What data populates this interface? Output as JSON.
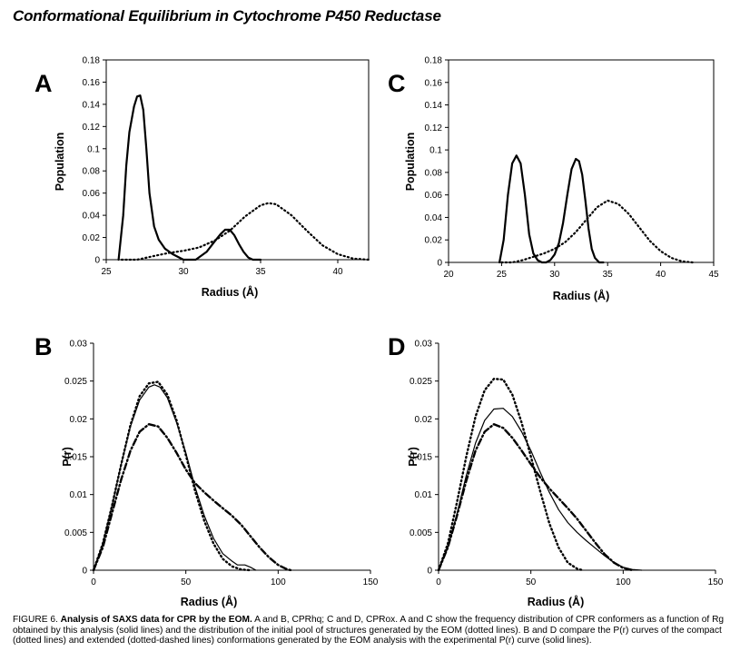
{
  "title": "Conformational Equilibrium in Cytochrome P450 Reductase",
  "caption": {
    "figure_label": "FIGURE 6.",
    "heading": "Analysis of SAXS data for CPR by the EOM.",
    "text": "A and B, CPRhq; C and D, CPRox. A and C show the frequency distribution of CPR conformers as a function of Rg obtained by this analysis (solid lines) and the distribution of the initial pool of structures generated by the EOM (dotted lines). B and D compare the P(r) curves of the compact (dotted lines) and extended (dotted-dashed lines) conformations generated by the EOM analysis with the experimental P(r) curve (solid lines)."
  },
  "chart_data": [
    {
      "panel": "A",
      "type": "line",
      "xlabel": "Radius (Å)",
      "ylabel": "Population",
      "xlim": [
        25,
        42
      ],
      "ylim": [
        0,
        0.18
      ],
      "xticks": [
        25,
        30,
        35,
        40
      ],
      "yticks": [
        0,
        0.02,
        0.04,
        0.06,
        0.08,
        0.1,
        0.12,
        0.14,
        0.16,
        0.18
      ],
      "series": [
        {
          "style": "solid",
          "x": [
            25.8,
            26.1,
            26.3,
            26.5,
            26.8,
            27.0,
            27.2,
            27.4,
            27.6,
            27.8,
            28.1,
            28.4,
            28.8,
            29.3,
            30.0,
            30.8,
            31.5,
            32.0,
            32.4,
            32.7,
            33.0,
            33.3,
            33.6,
            33.9,
            34.2,
            34.5,
            34.8,
            35.0
          ],
          "y": [
            0.0,
            0.04,
            0.085,
            0.115,
            0.138,
            0.147,
            0.148,
            0.135,
            0.1,
            0.06,
            0.03,
            0.018,
            0.01,
            0.005,
            0.0,
            0.0,
            0.007,
            0.016,
            0.023,
            0.027,
            0.027,
            0.022,
            0.014,
            0.007,
            0.002,
            0.0,
            0.0,
            0.0
          ]
        },
        {
          "style": "dotted",
          "x": [
            26.0,
            27.0,
            28.0,
            29.0,
            30.0,
            31.0,
            32.0,
            33.0,
            34.0,
            35.0,
            35.5,
            36.0,
            37.0,
            38.0,
            39.0,
            40.0,
            41.0,
            42.0
          ],
          "y": [
            0.0,
            0.0,
            0.003,
            0.006,
            0.008,
            0.011,
            0.017,
            0.026,
            0.039,
            0.049,
            0.051,
            0.05,
            0.04,
            0.026,
            0.013,
            0.005,
            0.001,
            0.0
          ]
        }
      ]
    },
    {
      "panel": "B",
      "type": "line",
      "xlabel": "Radius (Å)",
      "ylabel": "P(r)",
      "xlim": [
        0,
        150
      ],
      "ylim": [
        0,
        0.03
      ],
      "xticks": [
        0,
        50,
        100,
        150
      ],
      "yticks": [
        0,
        0.005,
        0.01,
        0.015,
        0.02,
        0.025,
        0.03
      ],
      "series": [
        {
          "style": "solid",
          "x": [
            0,
            5,
            10,
            15,
            20,
            25,
            30,
            33,
            36,
            40,
            45,
            50,
            55,
            60,
            65,
            70,
            75,
            78,
            82,
            85,
            88
          ],
          "y": [
            0.0,
            0.0035,
            0.0085,
            0.014,
            0.019,
            0.0225,
            0.0242,
            0.0245,
            0.0242,
            0.0228,
            0.0195,
            0.0155,
            0.011,
            0.0072,
            0.0042,
            0.0022,
            0.0012,
            0.0007,
            0.0007,
            0.0004,
            0.0
          ]
        },
        {
          "style": "dotted",
          "x": [
            0,
            5,
            10,
            15,
            20,
            25,
            30,
            35,
            40,
            45,
            50,
            55,
            60,
            65,
            70,
            75,
            80,
            85
          ],
          "y": [
            0.0,
            0.0035,
            0.0085,
            0.014,
            0.0192,
            0.023,
            0.0247,
            0.0249,
            0.0232,
            0.0198,
            0.0152,
            0.0105,
            0.0065,
            0.0035,
            0.0015,
            0.0005,
            0.0001,
            0.0
          ]
        },
        {
          "style": "dashdot",
          "x": [
            0,
            5,
            10,
            15,
            20,
            25,
            30,
            35,
            40,
            45,
            50,
            55,
            60,
            65,
            70,
            75,
            80,
            85,
            90,
            95,
            100,
            105,
            107
          ],
          "y": [
            0.0,
            0.003,
            0.0075,
            0.012,
            0.0158,
            0.0183,
            0.0193,
            0.019,
            0.0175,
            0.0155,
            0.0133,
            0.0115,
            0.0103,
            0.0092,
            0.0082,
            0.0072,
            0.006,
            0.0045,
            0.003,
            0.0017,
            0.0007,
            0.0001,
            0.0
          ]
        }
      ]
    },
    {
      "panel": "C",
      "type": "line",
      "xlabel": "Radius (Å)",
      "ylabel": "Population",
      "xlim": [
        20,
        45
      ],
      "ylim": [
        0,
        0.18
      ],
      "xticks": [
        20,
        25,
        30,
        35,
        40,
        45
      ],
      "yticks": [
        0,
        0.02,
        0.04,
        0.06,
        0.08,
        0.1,
        0.12,
        0.14,
        0.16,
        0.18
      ],
      "series": [
        {
          "style": "solid",
          "x": [
            24.8,
            25.2,
            25.6,
            26.0,
            26.4,
            26.8,
            27.2,
            27.6,
            28.0,
            28.4,
            28.8,
            29.2,
            29.6,
            30.0,
            30.4,
            30.8,
            31.2,
            31.6,
            32.0,
            32.3,
            32.6,
            32.9,
            33.2,
            33.5,
            33.8,
            34.2,
            34.6
          ],
          "y": [
            0.0,
            0.02,
            0.06,
            0.088,
            0.095,
            0.088,
            0.06,
            0.025,
            0.008,
            0.002,
            0.0,
            0.0,
            0.002,
            0.007,
            0.017,
            0.035,
            0.06,
            0.083,
            0.092,
            0.09,
            0.078,
            0.055,
            0.03,
            0.012,
            0.004,
            0.0,
            0.0
          ]
        },
        {
          "style": "dotted",
          "x": [
            25.0,
            26.0,
            27.0,
            28.0,
            29.0,
            30.0,
            31.0,
            32.0,
            33.0,
            34.0,
            35.0,
            36.0,
            37.0,
            38.0,
            39.0,
            40.0,
            41.0,
            42.0,
            43.0
          ],
          "y": [
            0.0,
            0.0,
            0.002,
            0.005,
            0.008,
            0.012,
            0.018,
            0.027,
            0.038,
            0.049,
            0.055,
            0.052,
            0.043,
            0.031,
            0.019,
            0.01,
            0.004,
            0.001,
            0.0
          ]
        }
      ]
    },
    {
      "panel": "D",
      "type": "line",
      "xlabel": "Radius (Å)",
      "ylabel": "P(r)",
      "xlim": [
        0,
        150
      ],
      "ylim": [
        0,
        0.03
      ],
      "xticks": [
        0,
        50,
        100,
        150
      ],
      "yticks": [
        0,
        0.005,
        0.01,
        0.015,
        0.02,
        0.025,
        0.03
      ],
      "series": [
        {
          "style": "solid",
          "x": [
            0,
            5,
            10,
            15,
            20,
            25,
            30,
            35,
            40,
            45,
            50,
            55,
            60,
            65,
            70,
            75,
            80,
            85,
            90,
            95,
            100,
            105,
            110
          ],
          "y": [
            0.0,
            0.003,
            0.0075,
            0.0125,
            0.0168,
            0.0198,
            0.0213,
            0.0214,
            0.0203,
            0.0183,
            0.0158,
            0.013,
            0.0103,
            0.008,
            0.0063,
            0.005,
            0.0039,
            0.0029,
            0.0019,
            0.001,
            0.0004,
            0.0001,
            0.0
          ]
        },
        {
          "style": "dotted",
          "x": [
            0,
            5,
            10,
            15,
            20,
            25,
            30,
            35,
            40,
            45,
            50,
            55,
            60,
            65,
            70,
            75,
            78
          ],
          "y": [
            0.0,
            0.0035,
            0.009,
            0.015,
            0.0203,
            0.0238,
            0.0253,
            0.0252,
            0.0232,
            0.0195,
            0.015,
            0.0105,
            0.0062,
            0.003,
            0.001,
            0.0002,
            0.0
          ]
        },
        {
          "style": "dashdot",
          "x": [
            0,
            5,
            10,
            15,
            20,
            25,
            30,
            35,
            40,
            45,
            50,
            55,
            60,
            65,
            70,
            75,
            80,
            85,
            90,
            95,
            100,
            105
          ],
          "y": [
            0.0,
            0.003,
            0.0072,
            0.0118,
            0.0158,
            0.0183,
            0.0193,
            0.0188,
            0.0175,
            0.0158,
            0.014,
            0.0123,
            0.0108,
            0.0095,
            0.0082,
            0.0068,
            0.0052,
            0.0036,
            0.0021,
            0.001,
            0.0003,
            0.0
          ]
        }
      ]
    }
  ]
}
